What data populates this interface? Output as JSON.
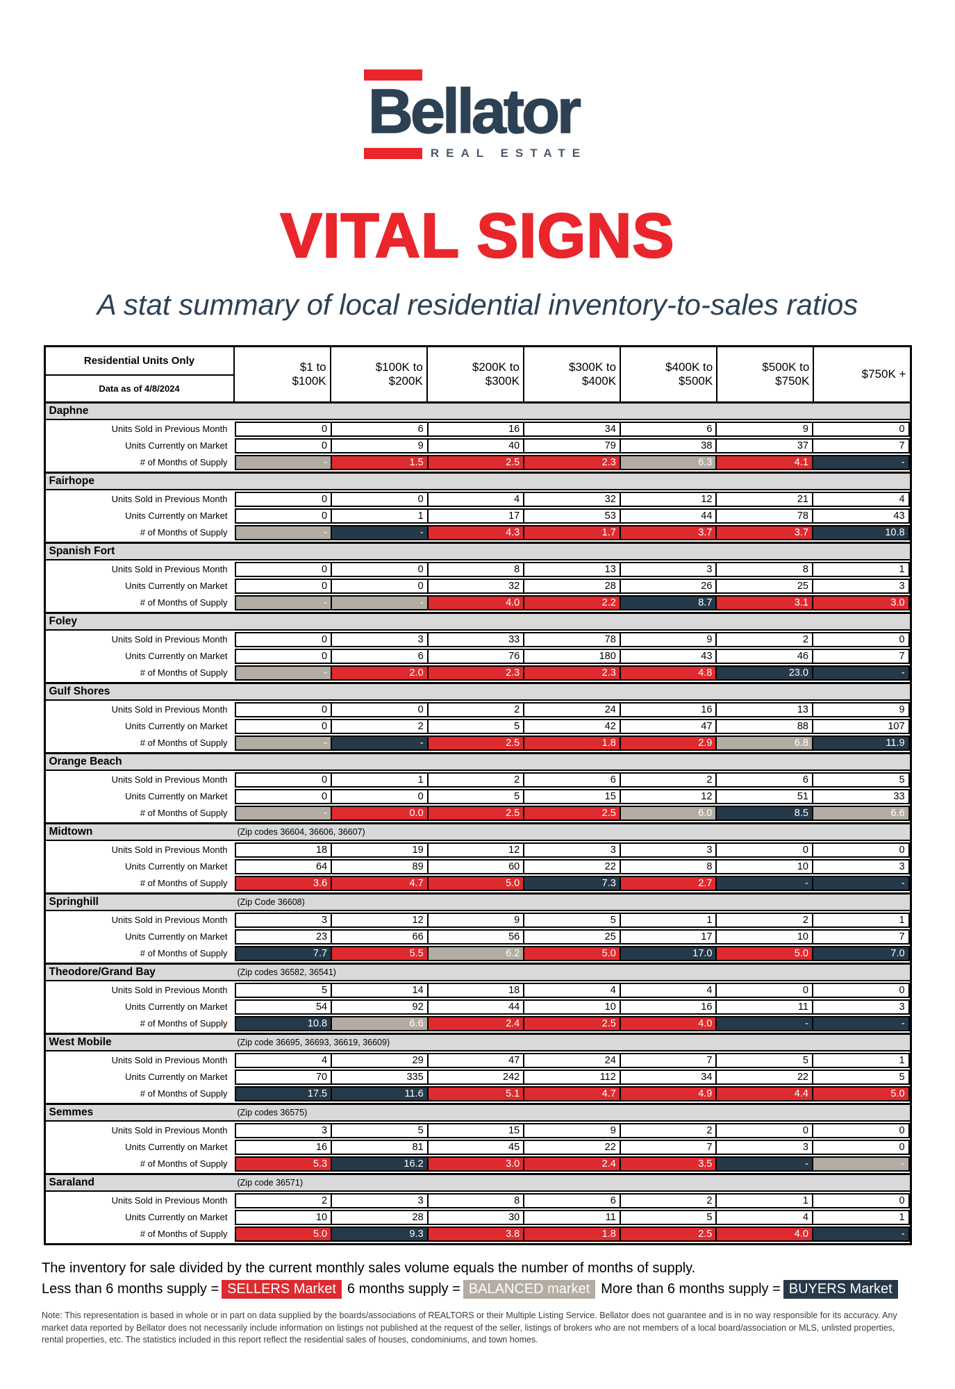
{
  "logo": {
    "wordmark": "Bellator",
    "tagline": "REAL ESTATE"
  },
  "title": "VITAL SIGNS",
  "subtitle": "A stat summary of local residential inventory-to-sales ratios",
  "table": {
    "corner_title": "Residential Units Only",
    "corner_subtitle": "Data as of 4/8/2024",
    "price_columns": [
      {
        "line1": "$1 to",
        "line2": "$100K"
      },
      {
        "line1": "$100K to",
        "line2": "$200K"
      },
      {
        "line1": "$200K to",
        "line2": "$300K"
      },
      {
        "line1": "$300K to",
        "line2": "$400K"
      },
      {
        "line1": "$400K to",
        "line2": "$500K"
      },
      {
        "line1": "$500K to",
        "line2": "$750K"
      },
      {
        "line1": "$750K +",
        "line2": ""
      }
    ],
    "row_labels": [
      "Units Sold in Previous Month",
      "Units Currently on Market",
      "# of Months of Supply"
    ],
    "regions": [
      {
        "name": "Daphne",
        "zip": "",
        "sold": [
          0,
          6,
          16,
          34,
          6,
          9,
          0
        ],
        "on_market": [
          0,
          9,
          40,
          79,
          38,
          37,
          7
        ],
        "supply": [
          {
            "v": "-",
            "m": "balanced"
          },
          {
            "v": "1.5",
            "m": "sellers"
          },
          {
            "v": "2.5",
            "m": "sellers"
          },
          {
            "v": "2.3",
            "m": "sellers"
          },
          {
            "v": "6.3",
            "m": "balanced"
          },
          {
            "v": "4.1",
            "m": "sellers"
          },
          {
            "v": "-",
            "m": "buyers"
          }
        ]
      },
      {
        "name": "Fairhope",
        "zip": "",
        "sold": [
          0,
          0,
          4,
          32,
          12,
          21,
          4
        ],
        "on_market": [
          0,
          1,
          17,
          53,
          44,
          78,
          43
        ],
        "supply": [
          {
            "v": "-",
            "m": "balanced"
          },
          {
            "v": "-",
            "m": "buyers"
          },
          {
            "v": "4.3",
            "m": "sellers"
          },
          {
            "v": "1.7",
            "m": "sellers"
          },
          {
            "v": "3.7",
            "m": "sellers"
          },
          {
            "v": "3.7",
            "m": "sellers"
          },
          {
            "v": "10.8",
            "m": "buyers"
          }
        ]
      },
      {
        "name": "Spanish Fort",
        "zip": "",
        "sold": [
          0,
          0,
          8,
          13,
          3,
          8,
          1
        ],
        "on_market": [
          0,
          0,
          32,
          28,
          26,
          25,
          3
        ],
        "supply": [
          {
            "v": "-",
            "m": "balanced"
          },
          {
            "v": "-",
            "m": "balanced"
          },
          {
            "v": "4.0",
            "m": "sellers"
          },
          {
            "v": "2.2",
            "m": "sellers"
          },
          {
            "v": "8.7",
            "m": "buyers"
          },
          {
            "v": "3.1",
            "m": "sellers"
          },
          {
            "v": "3.0",
            "m": "sellers"
          }
        ]
      },
      {
        "name": "Foley",
        "zip": "",
        "sold": [
          0,
          3,
          33,
          78,
          9,
          2,
          0
        ],
        "on_market": [
          0,
          6,
          76,
          180,
          43,
          46,
          7
        ],
        "supply": [
          {
            "v": "-",
            "m": "balanced"
          },
          {
            "v": "2.0",
            "m": "sellers"
          },
          {
            "v": "2.3",
            "m": "sellers"
          },
          {
            "v": "2.3",
            "m": "sellers"
          },
          {
            "v": "4.8",
            "m": "sellers"
          },
          {
            "v": "23.0",
            "m": "buyers"
          },
          {
            "v": "-",
            "m": "buyers"
          }
        ]
      },
      {
        "name": "Gulf Shores",
        "zip": "",
        "sold": [
          0,
          0,
          2,
          24,
          16,
          13,
          9
        ],
        "on_market": [
          0,
          2,
          5,
          42,
          47,
          88,
          107
        ],
        "supply": [
          {
            "v": "-",
            "m": "balanced"
          },
          {
            "v": "-",
            "m": "buyers"
          },
          {
            "v": "2.5",
            "m": "sellers"
          },
          {
            "v": "1.8",
            "m": "sellers"
          },
          {
            "v": "2.9",
            "m": "sellers"
          },
          {
            "v": "6.8",
            "m": "balanced"
          },
          {
            "v": "11.9",
            "m": "buyers"
          }
        ]
      },
      {
        "name": "Orange Beach",
        "zip": "",
        "sold": [
          0,
          1,
          2,
          6,
          2,
          6,
          5
        ],
        "on_market": [
          0,
          0,
          5,
          15,
          12,
          51,
          33
        ],
        "supply": [
          {
            "v": "-",
            "m": "balanced"
          },
          {
            "v": "0.0",
            "m": "sellers"
          },
          {
            "v": "2.5",
            "m": "sellers"
          },
          {
            "v": "2.5",
            "m": "sellers"
          },
          {
            "v": "6.0",
            "m": "balanced"
          },
          {
            "v": "8.5",
            "m": "buyers"
          },
          {
            "v": "6.6",
            "m": "balanced"
          }
        ]
      },
      {
        "name": "Midtown",
        "zip": "(Zip codes 36604, 36606, 36607)",
        "sold": [
          18,
          19,
          12,
          3,
          3,
          0,
          0
        ],
        "on_market": [
          64,
          89,
          60,
          22,
          8,
          10,
          3
        ],
        "supply": [
          {
            "v": "3.6",
            "m": "sellers"
          },
          {
            "v": "4.7",
            "m": "sellers"
          },
          {
            "v": "5.0",
            "m": "sellers"
          },
          {
            "v": "7.3",
            "m": "buyers"
          },
          {
            "v": "2.7",
            "m": "sellers"
          },
          {
            "v": "-",
            "m": "buyers"
          },
          {
            "v": "-",
            "m": "buyers"
          }
        ]
      },
      {
        "name": "Springhill",
        "zip": "(Zip Code 36608)",
        "sold": [
          3,
          12,
          9,
          5,
          1,
          2,
          1
        ],
        "on_market": [
          23,
          66,
          56,
          25,
          17,
          10,
          7
        ],
        "supply": [
          {
            "v": "7.7",
            "m": "buyers"
          },
          {
            "v": "5.5",
            "m": "sellers"
          },
          {
            "v": "6.2",
            "m": "balanced"
          },
          {
            "v": "5.0",
            "m": "sellers"
          },
          {
            "v": "17.0",
            "m": "buyers"
          },
          {
            "v": "5.0",
            "m": "sellers"
          },
          {
            "v": "7.0",
            "m": "buyers"
          }
        ]
      },
      {
        "name": "Theodore/Grand Bay",
        "zip": "(Zip codes 36582, 36541)",
        "sold": [
          5,
          14,
          18,
          4,
          4,
          0,
          0
        ],
        "on_market": [
          54,
          92,
          44,
          10,
          16,
          11,
          3
        ],
        "supply": [
          {
            "v": "10.8",
            "m": "buyers"
          },
          {
            "v": "6.6",
            "m": "balanced"
          },
          {
            "v": "2.4",
            "m": "sellers"
          },
          {
            "v": "2.5",
            "m": "sellers"
          },
          {
            "v": "4.0",
            "m": "sellers"
          },
          {
            "v": "-",
            "m": "buyers"
          },
          {
            "v": "-",
            "m": "buyers"
          }
        ]
      },
      {
        "name": "West Mobile",
        "zip": "(Zip code 36695, 36693, 36619, 36609)",
        "sold": [
          4,
          29,
          47,
          24,
          7,
          5,
          1
        ],
        "on_market": [
          70,
          335,
          242,
          112,
          34,
          22,
          5
        ],
        "supply": [
          {
            "v": "17.5",
            "m": "buyers"
          },
          {
            "v": "11.6",
            "m": "buyers"
          },
          {
            "v": "5.1",
            "m": "sellers"
          },
          {
            "v": "4.7",
            "m": "sellers"
          },
          {
            "v": "4.9",
            "m": "sellers"
          },
          {
            "v": "4.4",
            "m": "sellers"
          },
          {
            "v": "5.0",
            "m": "sellers"
          }
        ]
      },
      {
        "name": "Semmes",
        "zip": "(Zip codes 36575)",
        "sold": [
          3,
          5,
          15,
          9,
          2,
          0,
          0
        ],
        "on_market": [
          16,
          81,
          45,
          22,
          7,
          3,
          0
        ],
        "supply": [
          {
            "v": "5.3",
            "m": "sellers"
          },
          {
            "v": "16.2",
            "m": "buyers"
          },
          {
            "v": "3.0",
            "m": "sellers"
          },
          {
            "v": "2.4",
            "m": "sellers"
          },
          {
            "v": "3.5",
            "m": "sellers"
          },
          {
            "v": "-",
            "m": "buyers"
          },
          {
            "v": "-",
            "m": "balanced"
          }
        ]
      },
      {
        "name": "Saraland",
        "zip": "(Zip code 36571)",
        "sold": [
          2,
          3,
          8,
          6,
          2,
          1,
          0
        ],
        "on_market": [
          10,
          28,
          30,
          11,
          5,
          4,
          1
        ],
        "supply": [
          {
            "v": "5.0",
            "m": "sellers"
          },
          {
            "v": "9.3",
            "m": "buyers"
          },
          {
            "v": "3.8",
            "m": "sellers"
          },
          {
            "v": "1.8",
            "m": "sellers"
          },
          {
            "v": "2.5",
            "m": "sellers"
          },
          {
            "v": "4.0",
            "m": "sellers"
          },
          {
            "v": "-",
            "m": "buyers"
          }
        ]
      }
    ]
  },
  "legend": {
    "intro": "The inventory for sale divided by the current monthly sales volume equals the number of months of supply.",
    "sellers_prefix": "Less than 6 months supply =",
    "sellers_label": "SELLERS Market",
    "balanced_prefix": "6 months supply =",
    "balanced_label": "BALANCED market",
    "buyers_prefix": "More than 6 months supply =",
    "buyers_label": "BUYERS Market"
  },
  "note": "Note: This representation is based in whole or in part on data supplied by the boards/associations of REALTORS or their Multiple Listing Service. Bellator does not guarantee and is in no way responsible for its accuracy. Any market data reported by Bellator does not necessarily include information on listings not published at the request of the seller, listings of brokers who are not members of a local board/association or MLS, unlisted properties, rental properties, etc. The statistics included in this report reflect the residential sales of houses, condominiums, and town homes.",
  "colors": {
    "accent_red": "#E9262C",
    "navy": "#2D4154",
    "sellers_red": "#DE2B30",
    "buyers_navy": "#263949",
    "balanced_gray": "#B3ACA2",
    "band_gray": "#D9D9D9"
  }
}
